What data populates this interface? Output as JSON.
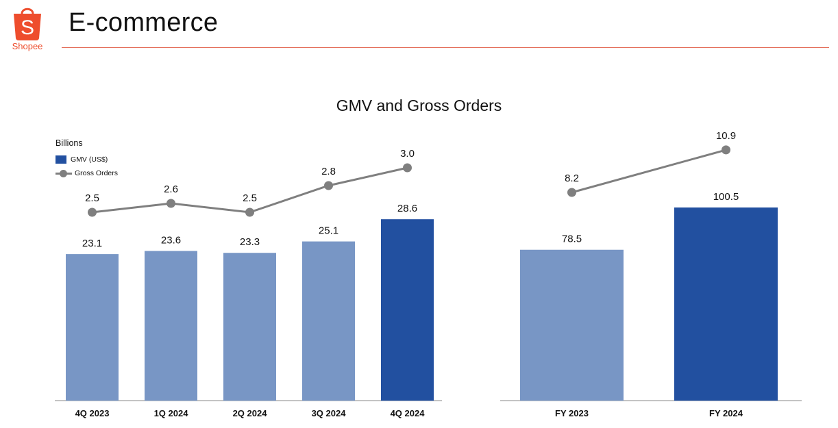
{
  "header": {
    "brand": "Shopee",
    "title": "E-commerce"
  },
  "colors": {
    "brand": "#ee4d2d",
    "bar_prior": "#7896c5",
    "bar_current": "#2250a0",
    "line": "#7f7f7f"
  },
  "legend": {
    "units": "Billions",
    "bar_label": "GMV (US$)",
    "line_label": "Gross Orders"
  },
  "chart_data": [
    {
      "type": "bar",
      "title": "GMV and Gross Orders",
      "categories": [
        "4Q 2023",
        "1Q 2024",
        "2Q 2024",
        "3Q 2024",
        "4Q 2024"
      ],
      "series": [
        {
          "name": "GMV (US$)",
          "kind": "bar",
          "values": [
            23.1,
            23.6,
            23.3,
            25.1,
            28.6
          ],
          "highlight_index": 4
        },
        {
          "name": "Gross Orders",
          "kind": "line",
          "values": [
            2.5,
            2.6,
            2.5,
            2.8,
            3.0
          ]
        }
      ],
      "ylabel": "Billions"
    },
    {
      "type": "bar",
      "title": "GMV and Gross Orders",
      "categories": [
        "FY 2023",
        "FY 2024"
      ],
      "series": [
        {
          "name": "GMV (US$)",
          "kind": "bar",
          "values": [
            78.5,
            100.5
          ],
          "highlight_index": 1
        },
        {
          "name": "Gross Orders",
          "kind": "line",
          "values": [
            8.2,
            10.9
          ]
        }
      ],
      "ylabel": "Billions"
    }
  ]
}
